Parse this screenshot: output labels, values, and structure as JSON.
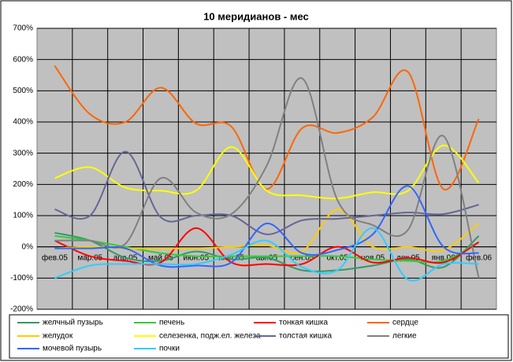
{
  "chart_data": {
    "type": "line",
    "title": "10 меридианов - мес",
    "categories": [
      "фев.05",
      "мар.05",
      "апр.05",
      "май.05",
      "июн.05",
      "июл.05",
      "авг.05",
      "сен.05",
      "окт.05",
      "ноя.05",
      "дек.05",
      "янв.06",
      "фев.06"
    ],
    "ylim": [
      -200,
      700
    ],
    "yticks": [
      {
        "value": -200,
        "label": "-200%"
      },
      {
        "value": -100,
        "label": "-100%"
      },
      {
        "value": 0,
        "label": "0%"
      },
      {
        "value": 100,
        "label": "100%"
      },
      {
        "value": 200,
        "label": "200%"
      },
      {
        "value": 300,
        "label": "300%"
      },
      {
        "value": 400,
        "label": "400%"
      },
      {
        "value": 500,
        "label": "500%"
      },
      {
        "value": 600,
        "label": "600%"
      },
      {
        "value": 700,
        "label": "700%"
      }
    ],
    "grid": true,
    "legend": "bottom",
    "smooth": true,
    "series": [
      {
        "name": "желчный пузырь",
        "color": "#339966",
        "values": [
          45,
          20,
          -35,
          -45,
          -15,
          -40,
          -35,
          -75,
          -75,
          -60,
          -40,
          -65,
          35
        ]
      },
      {
        "name": "печень",
        "color": "#33cc33",
        "values": [
          35,
          20,
          0,
          -20,
          -30,
          -30,
          -30,
          -30,
          -30,
          -40,
          -45,
          -45,
          15
        ]
      },
      {
        "name": "тонкая кишка",
        "color": "#ff0000",
        "values": [
          20,
          -30,
          -45,
          -50,
          60,
          -50,
          -55,
          -55,
          0,
          -50,
          -35,
          -50,
          15
        ]
      },
      {
        "name": "сердце",
        "color": "#ff6600",
        "values": [
          580,
          425,
          400,
          510,
          395,
          385,
          185,
          380,
          365,
          415,
          560,
          185,
          410
        ]
      },
      {
        "name": "желудок",
        "color": "#ffcc00",
        "values": [
          -5,
          0,
          -5,
          -5,
          -5,
          0,
          5,
          -15,
          120,
          0,
          0,
          -10,
          75
        ]
      },
      {
        "name": "селезенка, подж.ел. железа",
        "color": "#ffff00",
        "values": [
          220,
          255,
          190,
          180,
          180,
          320,
          180,
          165,
          155,
          175,
          180,
          325,
          205
        ]
      },
      {
        "name": "толстая кишка",
        "color": "#666699",
        "values": [
          120,
          100,
          305,
          95,
          100,
          100,
          40,
          85,
          90,
          100,
          110,
          105,
          135
        ]
      },
      {
        "name": "легкие",
        "color": "#808080",
        "values": [
          20,
          20,
          10,
          220,
          110,
          105,
          260,
          540,
          150,
          70,
          55,
          355,
          -100
        ]
      },
      {
        "name": "мочевой пузырь",
        "color": "#3366ff",
        "values": [
          -5,
          -5,
          -5,
          -60,
          -60,
          -50,
          75,
          -20,
          -10,
          40,
          195,
          0,
          -20
        ]
      },
      {
        "name": "почки",
        "color": "#33ccff",
        "values": [
          -100,
          -60,
          -55,
          -55,
          -55,
          -25,
          20,
          -65,
          -75,
          60,
          -105,
          -55,
          -55
        ]
      }
    ]
  }
}
